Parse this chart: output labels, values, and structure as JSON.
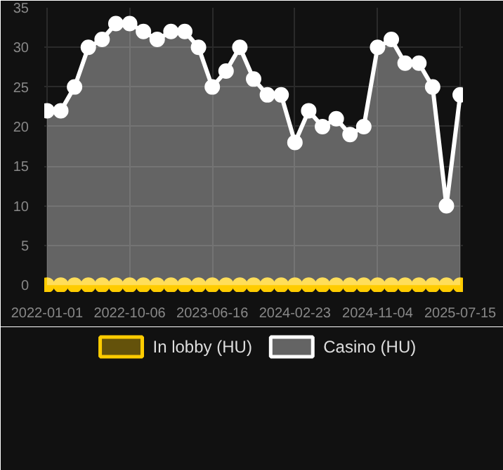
{
  "chart_data": {
    "type": "area",
    "categories": [
      "2022-01-01",
      null,
      null,
      null,
      null,
      null,
      "2022-10-06",
      null,
      null,
      null,
      null,
      null,
      "2023-06-16",
      null,
      null,
      null,
      null,
      null,
      "2024-02-23",
      null,
      null,
      null,
      null,
      null,
      "2024-11-04",
      null,
      null,
      null,
      null,
      null,
      "2025-07-15"
    ],
    "series": [
      {
        "name": "In lobby (HU)",
        "type": "scatter",
        "color": "#ffcc00",
        "values": [
          0,
          0,
          0,
          0,
          0,
          0,
          0,
          0,
          0,
          0,
          0,
          0,
          0,
          0,
          0,
          0,
          0,
          0,
          0,
          0,
          0,
          0,
          0,
          0,
          0,
          0,
          0,
          0,
          0,
          0,
          0
        ]
      },
      {
        "name": "Casino (HU)",
        "color": "#ffffff",
        "values": [
          22,
          22,
          25,
          30,
          31,
          33,
          33,
          32,
          31,
          32,
          32,
          30,
          25,
          27,
          30,
          26,
          24,
          24,
          18,
          22,
          20,
          21,
          19,
          20,
          30,
          31,
          28,
          28,
          25,
          10,
          24
        ]
      }
    ],
    "ylim": [
      0,
      35
    ],
    "yticks": [
      0,
      5,
      10,
      15,
      20,
      25,
      30,
      35
    ],
    "grid": true,
    "legend": "bottom",
    "marker": "circle",
    "line_style": "solid"
  }
}
